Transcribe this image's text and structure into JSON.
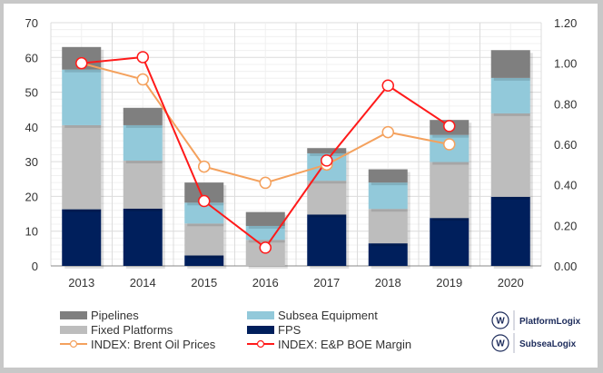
{
  "chart_data": {
    "type": "bar",
    "stacked": true,
    "categories": [
      "2013",
      "2014",
      "2015",
      "2016",
      "2017",
      "2018",
      "2019",
      "2020"
    ],
    "ylim": [
      0,
      70
    ],
    "yticks": [
      0,
      10,
      20,
      30,
      40,
      50,
      60,
      70
    ],
    "y2lim": [
      0,
      1.2
    ],
    "y2ticks": [
      "0.00",
      "0.20",
      "0.40",
      "0.60",
      "0.80",
      "1.00",
      "1.20"
    ],
    "grid": true,
    "legend_placement": "bottom",
    "series": [
      {
        "name": "FPS",
        "color": "#001f5c",
        "values": [
          16.3,
          16.5,
          3.0,
          0,
          14.8,
          6.5,
          13.8,
          19.9
        ]
      },
      {
        "name": "Fixed Platforms",
        "color": "#bdbdbd",
        "values": [
          24.2,
          13.8,
          9.2,
          7.5,
          9.7,
          9.9,
          16.1,
          24.0
        ]
      },
      {
        "name": "Subsea Equipment",
        "color": "#92c9da",
        "values": [
          16.0,
          10.2,
          6.0,
          4.0,
          7.9,
          7.6,
          7.8,
          10.2
        ]
      },
      {
        "name": "Pipelines",
        "color": "#7f7f7f",
        "values": [
          6.5,
          5.0,
          5.8,
          4.0,
          1.5,
          3.8,
          4.3,
          8.0
        ]
      }
    ],
    "lines": [
      {
        "name": "INDEX: Brent Oil Prices",
        "color": "#f4a15d",
        "axis": "right",
        "values": [
          1.0,
          0.92,
          0.49,
          0.41,
          0.5,
          0.66,
          0.6,
          null
        ]
      },
      {
        "name": "INDEX: E&P BOE Margin",
        "color": "#ff1a1a",
        "axis": "right",
        "values": [
          1.0,
          1.03,
          0.32,
          0.09,
          0.52,
          0.89,
          0.69,
          null
        ]
      }
    ]
  },
  "legend": [
    {
      "label": "Pipelines",
      "kind": "box",
      "color": "#7f7f7f"
    },
    {
      "label": "Subsea Equipment",
      "kind": "box",
      "color": "#92c9da"
    },
    {
      "label": "Fixed Platforms",
      "kind": "box",
      "color": "#bdbdbd"
    },
    {
      "label": "FPS",
      "kind": "box",
      "color": "#001f5c"
    },
    {
      "label": "INDEX: Brent Oil Prices",
      "kind": "line",
      "color": "#f4a15d"
    },
    {
      "label": "INDEX: E&P BOE Margin",
      "kind": "line",
      "color": "#ff1a1a"
    }
  ],
  "logos": [
    {
      "text": "PlatformLogix",
      "mark": "W"
    },
    {
      "text": "SubseaLogix",
      "mark": "W"
    }
  ]
}
